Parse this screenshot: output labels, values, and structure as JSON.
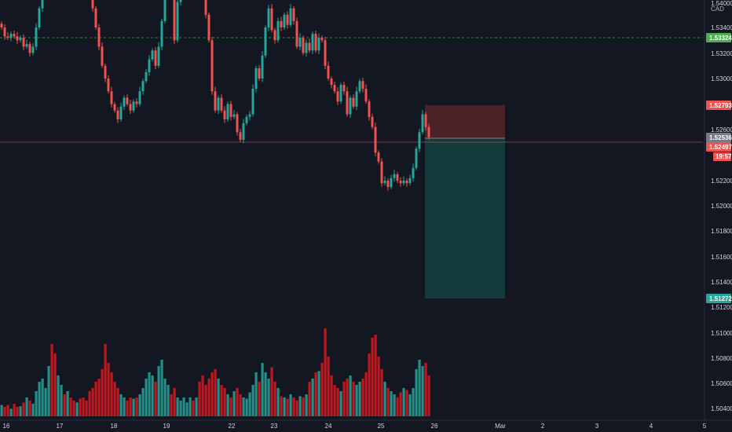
{
  "currency": "CAD",
  "colors": {
    "background": "#131722",
    "up": "#26a69a",
    "down": "#ef5350",
    "volume_up": "#26a69a",
    "volume_down": "#e6151b",
    "stop_zone": "#4a2328",
    "target_zone": "#143b3c",
    "level_line": "#4caf50",
    "price_line": "#ef5350"
  },
  "chart_data": {
    "type": "candlestick",
    "ylim": [
      1.5034,
      1.5421
    ],
    "y_ticks": [
      "1.54000",
      "1.53400",
      "1.53200",
      "1.53000",
      "1.52600",
      "1.52200",
      "1.52000",
      "1.51800",
      "1.51600",
      "1.51400",
      "1.51200",
      "1.51000",
      "1.50800",
      "1.50600",
      "1.50400"
    ],
    "x_ticks": [
      "16",
      "17",
      "18",
      "19",
      "22",
      "23",
      "24",
      "25",
      "26",
      "Mar",
      "2",
      "3",
      "4",
      "5"
    ],
    "levels": {
      "dashed_level": "1.53324",
      "stop_price": "1.52793",
      "current_price": "1.52536",
      "bid_price": "1.52497",
      "countdown": "19:57",
      "target_price": "1.51272"
    },
    "position": {
      "entry": 1.5254,
      "stop": 1.52793,
      "target": 1.51272,
      "start_date": "25",
      "end_date": "26"
    },
    "path": [
      [
        0,
        1.534
      ],
      [
        4,
        1.5333
      ],
      [
        8,
        1.5332
      ],
      [
        12,
        1.5335
      ],
      [
        16,
        1.5333
      ],
      [
        20,
        1.533
      ],
      [
        24,
        1.5332
      ],
      [
        28,
        1.5325
      ],
      [
        32,
        1.5327
      ],
      [
        36,
        1.532
      ],
      [
        40,
        1.5325
      ],
      [
        44,
        1.534
      ],
      [
        48,
        1.5355
      ],
      [
        52,
        1.5372
      ],
      [
        56,
        1.5395
      ],
      [
        60,
        1.541
      ],
      [
        64,
        1.5405
      ],
      [
        68,
        1.5398
      ],
      [
        72,
        1.541
      ],
      [
        76,
        1.5412
      ],
      [
        80,
        1.5402
      ],
      [
        84,
        1.5406
      ],
      [
        88,
        1.5395
      ],
      [
        92,
        1.5392
      ],
      [
        96,
        1.5403
      ],
      [
        100,
        1.54
      ],
      [
        104,
        1.5392
      ],
      [
        108,
        1.5378
      ],
      [
        112,
        1.537
      ],
      [
        116,
        1.5355
      ],
      [
        120,
        1.534
      ],
      [
        124,
        1.5325
      ],
      [
        128,
        1.531
      ],
      [
        132,
        1.53
      ],
      [
        136,
        1.529
      ],
      [
        140,
        1.528
      ],
      [
        144,
        1.5275
      ],
      [
        148,
        1.5268
      ],
      [
        152,
        1.5278
      ],
      [
        156,
        1.5285
      ],
      [
        160,
        1.528
      ],
      [
        164,
        1.5275
      ],
      [
        168,
        1.5282
      ],
      [
        172,
        1.528
      ],
      [
        176,
        1.529
      ],
      [
        180,
        1.5298
      ],
      [
        184,
        1.5305
      ],
      [
        188,
        1.5315
      ],
      [
        192,
        1.5322
      ],
      [
        196,
        1.531
      ],
      [
        200,
        1.5325
      ],
      [
        204,
        1.5345
      ],
      [
        208,
        1.538
      ],
      [
        212,
        1.5395
      ],
      [
        216,
        1.537
      ],
      [
        220,
        1.533
      ],
      [
        224,
        1.536
      ],
      [
        228,
        1.5365
      ],
      [
        232,
        1.5388
      ],
      [
        236,
        1.5405
      ],
      [
        240,
        1.5412
      ],
      [
        244,
        1.54
      ],
      [
        248,
        1.541
      ],
      [
        252,
        1.5398
      ],
      [
        256,
        1.5378
      ],
      [
        260,
        1.535
      ],
      [
        264,
        1.533
      ],
      [
        268,
        1.529
      ],
      [
        272,
        1.5275
      ],
      [
        276,
        1.5285
      ],
      [
        280,
        1.5275
      ],
      [
        284,
        1.5268
      ],
      [
        288,
        1.528
      ],
      [
        292,
        1.527
      ],
      [
        296,
        1.5272
      ],
      [
        300,
        1.5258
      ],
      [
        304,
        1.5252
      ],
      [
        308,
        1.5265
      ],
      [
        312,
        1.527
      ],
      [
        316,
        1.5272
      ],
      [
        320,
        1.5292
      ],
      [
        324,
        1.5308
      ],
      [
        328,
        1.53
      ],
      [
        332,
        1.5318
      ],
      [
        336,
        1.534
      ],
      [
        340,
        1.5355
      ],
      [
        344,
        1.5338
      ],
      [
        348,
        1.533
      ],
      [
        352,
        1.5345
      ],
      [
        356,
        1.534
      ],
      [
        360,
        1.535
      ],
      [
        364,
        1.5342
      ],
      [
        368,
        1.5355
      ],
      [
        372,
        1.5345
      ],
      [
        376,
        1.5325
      ],
      [
        380,
        1.5332
      ],
      [
        384,
        1.532
      ],
      [
        388,
        1.5328
      ],
      [
        392,
        1.5322
      ],
      [
        396,
        1.5335
      ],
      [
        400,
        1.5322
      ],
      [
        404,
        1.5332
      ],
      [
        408,
        1.533
      ],
      [
        412,
        1.531
      ],
      [
        416,
        1.53
      ],
      [
        420,
        1.5295
      ],
      [
        424,
        1.529
      ],
      [
        428,
        1.5282
      ],
      [
        432,
        1.5295
      ],
      [
        436,
        1.529
      ],
      [
        440,
        1.5272
      ],
      [
        444,
        1.5285
      ],
      [
        448,
        1.5278
      ],
      [
        452,
        1.529
      ],
      [
        456,
        1.5298
      ],
      [
        460,
        1.5292
      ],
      [
        464,
        1.5282
      ],
      [
        468,
        1.527
      ],
      [
        472,
        1.5262
      ],
      [
        476,
        1.5242
      ],
      [
        480,
        1.5235
      ],
      [
        484,
        1.5218
      ],
      [
        488,
        1.522
      ],
      [
        492,
        1.5215
      ],
      [
        496,
        1.5222
      ],
      [
        500,
        1.5225
      ],
      [
        504,
        1.522
      ],
      [
        508,
        1.5218
      ],
      [
        512,
        1.522
      ],
      [
        516,
        1.5218
      ],
      [
        520,
        1.5222
      ],
      [
        524,
        1.523
      ],
      [
        528,
        1.5245
      ],
      [
        532,
        1.5258
      ],
      [
        536,
        1.5272
      ],
      [
        540,
        1.5262
      ],
      [
        544,
        1.5254
      ]
    ],
    "volume": [
      [
        0,
        0.18
      ],
      [
        4,
        0.15
      ],
      [
        8,
        0.18
      ],
      [
        12,
        0.12
      ],
      [
        16,
        0.2
      ],
      [
        20,
        0.15
      ],
      [
        24,
        0.16
      ],
      [
        28,
        0.22
      ],
      [
        32,
        0.3
      ],
      [
        36,
        0.25
      ],
      [
        40,
        0.2
      ],
      [
        44,
        0.4
      ],
      [
        48,
        0.55
      ],
      [
        52,
        0.6
      ],
      [
        56,
        0.45
      ],
      [
        60,
        0.8
      ],
      [
        64,
        1.15
      ],
      [
        68,
        1.0
      ],
      [
        72,
        0.65
      ],
      [
        76,
        0.5
      ],
      [
        80,
        0.35
      ],
      [
        84,
        0.4
      ],
      [
        88,
        0.3
      ],
      [
        92,
        0.25
      ],
      [
        96,
        0.22
      ],
      [
        100,
        0.28
      ],
      [
        104,
        0.3
      ],
      [
        108,
        0.25
      ],
      [
        112,
        0.4
      ],
      [
        116,
        0.45
      ],
      [
        120,
        0.55
      ],
      [
        124,
        0.6
      ],
      [
        128,
        0.75
      ],
      [
        132,
        1.15
      ],
      [
        136,
        0.85
      ],
      [
        140,
        0.7
      ],
      [
        144,
        0.55
      ],
      [
        148,
        0.45
      ],
      [
        152,
        0.35
      ],
      [
        156,
        0.3
      ],
      [
        160,
        0.25
      ],
      [
        164,
        0.3
      ],
      [
        168,
        0.28
      ],
      [
        172,
        0.3
      ],
      [
        176,
        0.35
      ],
      [
        180,
        0.45
      ],
      [
        184,
        0.6
      ],
      [
        188,
        0.7
      ],
      [
        192,
        0.65
      ],
      [
        196,
        0.55
      ],
      [
        200,
        0.8
      ],
      [
        204,
        0.9
      ],
      [
        208,
        0.6
      ],
      [
        212,
        0.5
      ],
      [
        216,
        0.35
      ],
      [
        220,
        0.45
      ],
      [
        224,
        0.3
      ],
      [
        228,
        0.25
      ],
      [
        232,
        0.3
      ],
      [
        236,
        0.22
      ],
      [
        240,
        0.3
      ],
      [
        244,
        0.25
      ],
      [
        248,
        0.3
      ],
      [
        252,
        0.55
      ],
      [
        256,
        0.65
      ],
      [
        260,
        0.5
      ],
      [
        264,
        0.6
      ],
      [
        268,
        0.7
      ],
      [
        272,
        0.75
      ],
      [
        276,
        0.6
      ],
      [
        280,
        0.5
      ],
      [
        284,
        0.45
      ],
      [
        288,
        0.35
      ],
      [
        292,
        0.3
      ],
      [
        296,
        0.4
      ],
      [
        300,
        0.45
      ],
      [
        304,
        0.35
      ],
      [
        308,
        0.3
      ],
      [
        312,
        0.28
      ],
      [
        316,
        0.38
      ],
      [
        320,
        0.5
      ],
      [
        324,
        0.7
      ],
      [
        328,
        0.55
      ],
      [
        332,
        0.85
      ],
      [
        336,
        0.7
      ],
      [
        340,
        0.6
      ],
      [
        344,
        0.78
      ],
      [
        348,
        0.55
      ],
      [
        352,
        0.45
      ],
      [
        356,
        0.32
      ],
      [
        360,
        0.3
      ],
      [
        364,
        0.28
      ],
      [
        368,
        0.35
      ],
      [
        372,
        0.3
      ],
      [
        376,
        0.25
      ],
      [
        380,
        0.32
      ],
      [
        384,
        0.3
      ],
      [
        388,
        0.35
      ],
      [
        392,
        0.55
      ],
      [
        396,
        0.6
      ],
      [
        400,
        0.7
      ],
      [
        404,
        0.72
      ],
      [
        408,
        0.85
      ],
      [
        412,
        1.4
      ],
      [
        416,
        0.95
      ],
      [
        420,
        0.65
      ],
      [
        424,
        0.5
      ],
      [
        428,
        0.45
      ],
      [
        432,
        0.4
      ],
      [
        436,
        0.55
      ],
      [
        440,
        0.6
      ],
      [
        444,
        0.65
      ],
      [
        448,
        0.55
      ],
      [
        452,
        0.5
      ],
      [
        456,
        0.55
      ],
      [
        460,
        0.6
      ],
      [
        464,
        0.7
      ],
      [
        468,
        1.0
      ],
      [
        472,
        1.25
      ],
      [
        476,
        1.3
      ],
      [
        480,
        0.95
      ],
      [
        484,
        0.75
      ],
      [
        488,
        0.55
      ],
      [
        492,
        0.45
      ],
      [
        496,
        0.4
      ],
      [
        500,
        0.35
      ],
      [
        504,
        0.3
      ],
      [
        508,
        0.38
      ],
      [
        512,
        0.45
      ],
      [
        516,
        0.42
      ],
      [
        520,
        0.35
      ],
      [
        524,
        0.45
      ],
      [
        528,
        0.75
      ],
      [
        532,
        0.9
      ],
      [
        536,
        0.8
      ],
      [
        540,
        0.85
      ],
      [
        544,
        0.65
      ]
    ]
  }
}
